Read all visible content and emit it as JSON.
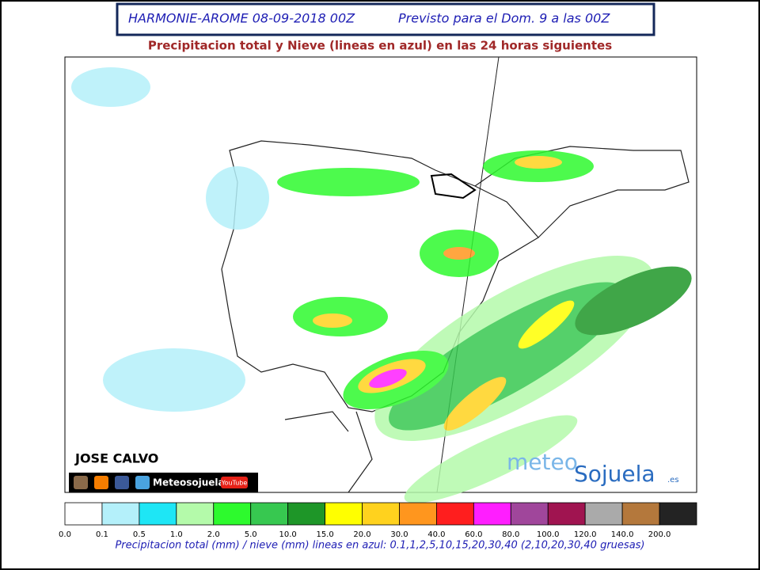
{
  "header": {
    "title": "HARMONIE-AROME 08-09-2018 00Z",
    "forecast": "Previsto para el Dom. 9 a las 00Z"
  },
  "subtitle": "Precipitacion total y Nieve (lineas en azul) en las 24 horas siguientes",
  "author": "JOSE CALVO",
  "social": {
    "name": "Meteosojuela",
    "video": "YouTube"
  },
  "logo": {
    "prefix": "meteo",
    "brand": "Sojuela",
    "suffix": ".es"
  },
  "colorbar": {
    "labels": [
      "0.0",
      "0.1",
      "0.5",
      "1.0",
      "2.0",
      "5.0",
      "10.0",
      "15.0",
      "20.0",
      "30.0",
      "40.0",
      "60.0",
      "80.0",
      "100.0",
      "120.0",
      "140.0",
      "200.0"
    ],
    "colors": [
      "#ffffff",
      "#b4f0fa",
      "#1ee6f5",
      "#b4faaa",
      "#2dfa2d",
      "#37c850",
      "#1e9628",
      "#ffff00",
      "#ffd21e",
      "#ff961e",
      "#ff1e1e",
      "#ff1eff",
      "#a0469b",
      "#a01450",
      "#aaaaaa",
      "#b4783c",
      "#232323"
    ],
    "caption": "Precipitacion total (mm) / nieve (mm) lineas en azul: 0.1,1,2,5,10,15,20,30,40  (2,10,20,30,40 gruesas)"
  }
}
